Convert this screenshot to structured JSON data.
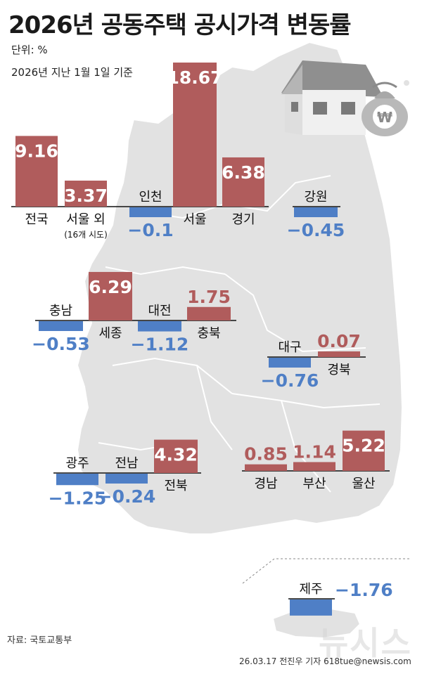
{
  "header": {
    "title": "2026년 공동주택 공시가격 변동률",
    "unit": "단위: %",
    "basis": "2026년 지난 1월 1일 기준"
  },
  "footer": {
    "source": "자료: 국토교통부",
    "credit": "26.03.17 전진우 기자 618tue@newsis.com",
    "watermark": "뉴시스"
  },
  "colors": {
    "positive": "#b05c5c",
    "negative": "#4f7fc6",
    "map_fill": "#e2e2e2",
    "map_stroke": "#ffffff",
    "axis": "#111111",
    "label": "#111111"
  },
  "icons": [
    "house-icon",
    "money-bag-icon"
  ],
  "chart_data": {
    "type": "bar",
    "title": "2026년 공동주택 공시가격 변동률",
    "unit": "%",
    "series": [
      {
        "name": "변동률",
        "values": [
          9.16,
          3.37,
          -0.1,
          18.67,
          6.38,
          -0.45,
          -0.53,
          6.29,
          -1.12,
          1.75,
          -0.76,
          0.07,
          -1.25,
          -0.24,
          4.32,
          0.85,
          1.14,
          5.22,
          -1.76
        ]
      }
    ],
    "categories": [
      "전국",
      "서울 외",
      "인천",
      "서울",
      "경기",
      "강원",
      "충남",
      "세종",
      "대전",
      "충북",
      "대구",
      "경북",
      "광주",
      "전남",
      "전북",
      "경남",
      "부산",
      "울산",
      "제주"
    ],
    "labels": [
      "9.16",
      "3.37",
      "−0.1",
      "18.67",
      "6.38",
      "−0.45",
      "−0.53",
      "6.29",
      "−1.12",
      "1.75",
      "−0.76",
      "0.07",
      "−1.25",
      "−0.24",
      "4.32",
      "0.85",
      "1.14",
      "5.22",
      "−1.76"
    ],
    "subnotes": [
      "",
      "(16개 시도)",
      "",
      "",
      "",
      "",
      "",
      "",
      "",
      "",
      "",
      "",
      "",
      "",
      "",
      "",
      "",
      "",
      ""
    ]
  }
}
